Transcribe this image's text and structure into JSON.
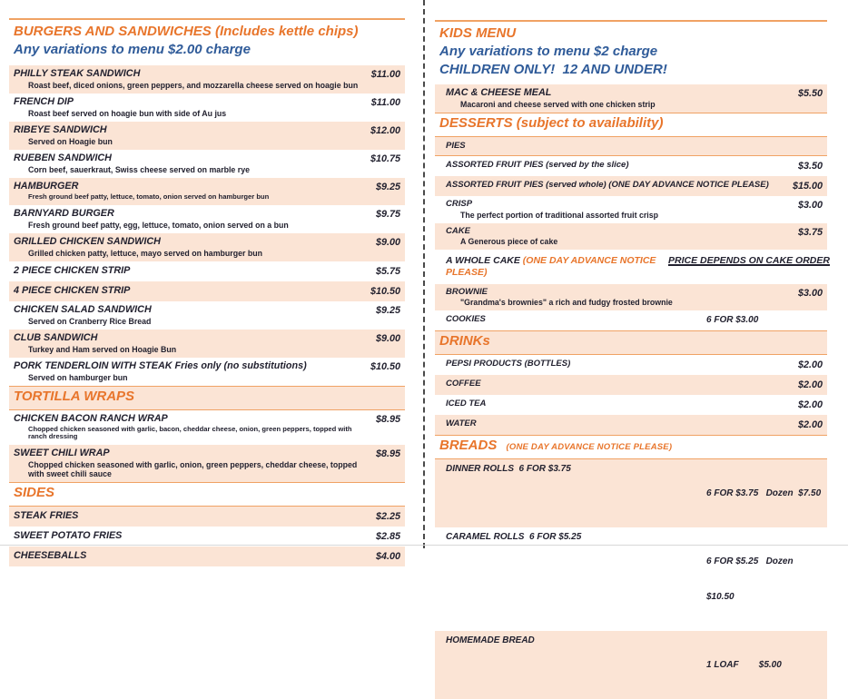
{
  "colors": {
    "accent_orange": "#E8752B",
    "rule_orange": "#F0A264",
    "row_peach": "#FBE4D5",
    "heading_blue": "#2F5B99",
    "text_dark": "#22212F",
    "divider_gray": "#4A4A4A",
    "page_edge_gray": "#D8D8D8"
  },
  "left": {
    "burgers": {
      "title": "BURGERS AND SANDWICHES (Includes kettle chips)",
      "subtitle": "Any variations to menu $2.00 charge",
      "items": [
        {
          "name": "PHILLY STEAK SANDWICH",
          "desc": "Roast beef, diced onions, green peppers, and mozzarella cheese served on hoagie bun",
          "price": "$11.00"
        },
        {
          "name": "FRENCH DIP",
          "desc": "Roast beef served on hoagie bun with side of Au jus",
          "price": "$11.00"
        },
        {
          "name": "RIBEYE SANDWICH",
          "desc": "Served on Hoagie bun",
          "price": "$12.00"
        },
        {
          "name": "RUEBEN SANDWICH",
          "desc": "Corn beef, sauerkraut, Swiss cheese served on marble rye",
          "price": "$10.75"
        },
        {
          "name": "HAMBURGER",
          "desc": "Fresh ground beef patty, lettuce, tomato, onion served on hamburger bun",
          "price": "$9.25"
        },
        {
          "name": "BARNYARD BURGER",
          "desc": "Fresh ground beef patty, egg, lettuce, tomato, onion served on a bun",
          "price": "$9.75"
        },
        {
          "name": "GRILLED CHICKEN SANDWICH",
          "desc": "Grilled chicken patty, lettuce, mayo served on hamburger bun",
          "price": "$9.00"
        },
        {
          "name": "2 PIECE CHICKEN STRIP",
          "price": "$5.75"
        },
        {
          "name": "4 PIECE CHICKEN STRIP",
          "price": "$10.50"
        },
        {
          "name": "CHICKEN SALAD SANDWICH",
          "desc": "Served on Cranberry Rice Bread",
          "price": "$9.25"
        },
        {
          "name": "CLUB SANDWICH",
          "desc": "Turkey and Ham served on Hoagie Bun",
          "price": "$9.00"
        },
        {
          "name": "PORK TENDERLOIN WITH STEAK Fries only (no substitutions)",
          "desc": "Served on hamburger bun",
          "price": "$10.50"
        }
      ]
    },
    "tortilla": {
      "header": "TORTILLA WRAPS",
      "items": [
        {
          "name": "CHICKEN BACON RANCH WRAP",
          "desc": "Chopped chicken seasoned with garlic, bacon, cheddar cheese, onion, green peppers, topped with ranch dressing",
          "price": "$8.95"
        },
        {
          "name": "SWEET CHILI WRAP",
          "desc": "Chopped chicken seasoned with garlic, onion, green peppers, cheddar cheese, topped with sweet chili sauce",
          "price": "$8.95"
        }
      ]
    },
    "sides": {
      "header": "SIDES",
      "items": [
        {
          "name": "STEAK FRIES",
          "price": "$2.25"
        },
        {
          "name": "SWEET POTATO FRIES",
          "price": "$2.85"
        },
        {
          "name": "CHEESEBALLS",
          "price": "$4.00"
        }
      ]
    }
  },
  "right": {
    "kids": {
      "title": "KIDS MENU",
      "subtitle1": "Any variations to menu $2 charge",
      "subtitle2": "CHILDREN ONLY!  12 AND UNDER!",
      "items": [
        {
          "name": "MAC & CHEESE MEAL",
          "desc": "Macaroni and cheese served with one chicken strip",
          "price": "$5.50"
        }
      ]
    },
    "desserts": {
      "header": "DESSERTS (subject to availability)",
      "items": [
        {
          "name": "PIES"
        },
        {
          "name": "ASSORTED FRUIT PIES (served by the slice)",
          "price": "$3.50"
        },
        {
          "name": "ASSORTED FRUIT PIES (served whole) (ONE DAY ADVANCE NOTICE PLEASE)",
          "price": "$15.00"
        },
        {
          "name": "CRISP",
          "desc": "The perfect portion of traditional assorted fruit crisp",
          "price": "$3.00"
        },
        {
          "name": "CAKE",
          "desc": "A Generous piece of cake",
          "price": "$3.75"
        },
        {
          "name": "A WHOLE CAKE",
          "note": "(ONE DAY ADVANCE NOTICE PLEASE)",
          "price_text": "PRICE DEPENDS ON CAKE ORDER"
        },
        {
          "name": "BROWNIE",
          "desc": "\"Grandma's brownies\" a rich and fudgy frosted brownie",
          "price": "$3.00"
        },
        {
          "name": "COOKIES",
          "mid_price": "6 FOR $3.00"
        }
      ]
    },
    "drinks": {
      "header": "DRINKs",
      "items": [
        {
          "name": "PEPSI PRODUCTS (BOTTLES)",
          "price": "$2.00"
        },
        {
          "name": "COFFEE",
          "price": "$2.00"
        },
        {
          "name": "ICED TEA",
          "price": "$2.00"
        },
        {
          "name": "WATER",
          "price": "$2.00"
        }
      ]
    },
    "breads": {
      "header": "BREADS",
      "note": "(ONE DAY ADVANCE NOTICE PLEASE)",
      "items": [
        {
          "name": "DINNER ROLLS  6 FOR $3.75",
          "info_line1": "6 FOR $3.75   Dozen  $7.50"
        },
        {
          "name": "CARAMEL ROLLS  6 FOR $5.25",
          "info_line1": "6 FOR $5.25   Dozen",
          "info_line2": "$10.50"
        },
        {
          "name": "HOMEMADE BREAD",
          "info_line1": "1 LOAF        $5.00"
        }
      ]
    }
  }
}
